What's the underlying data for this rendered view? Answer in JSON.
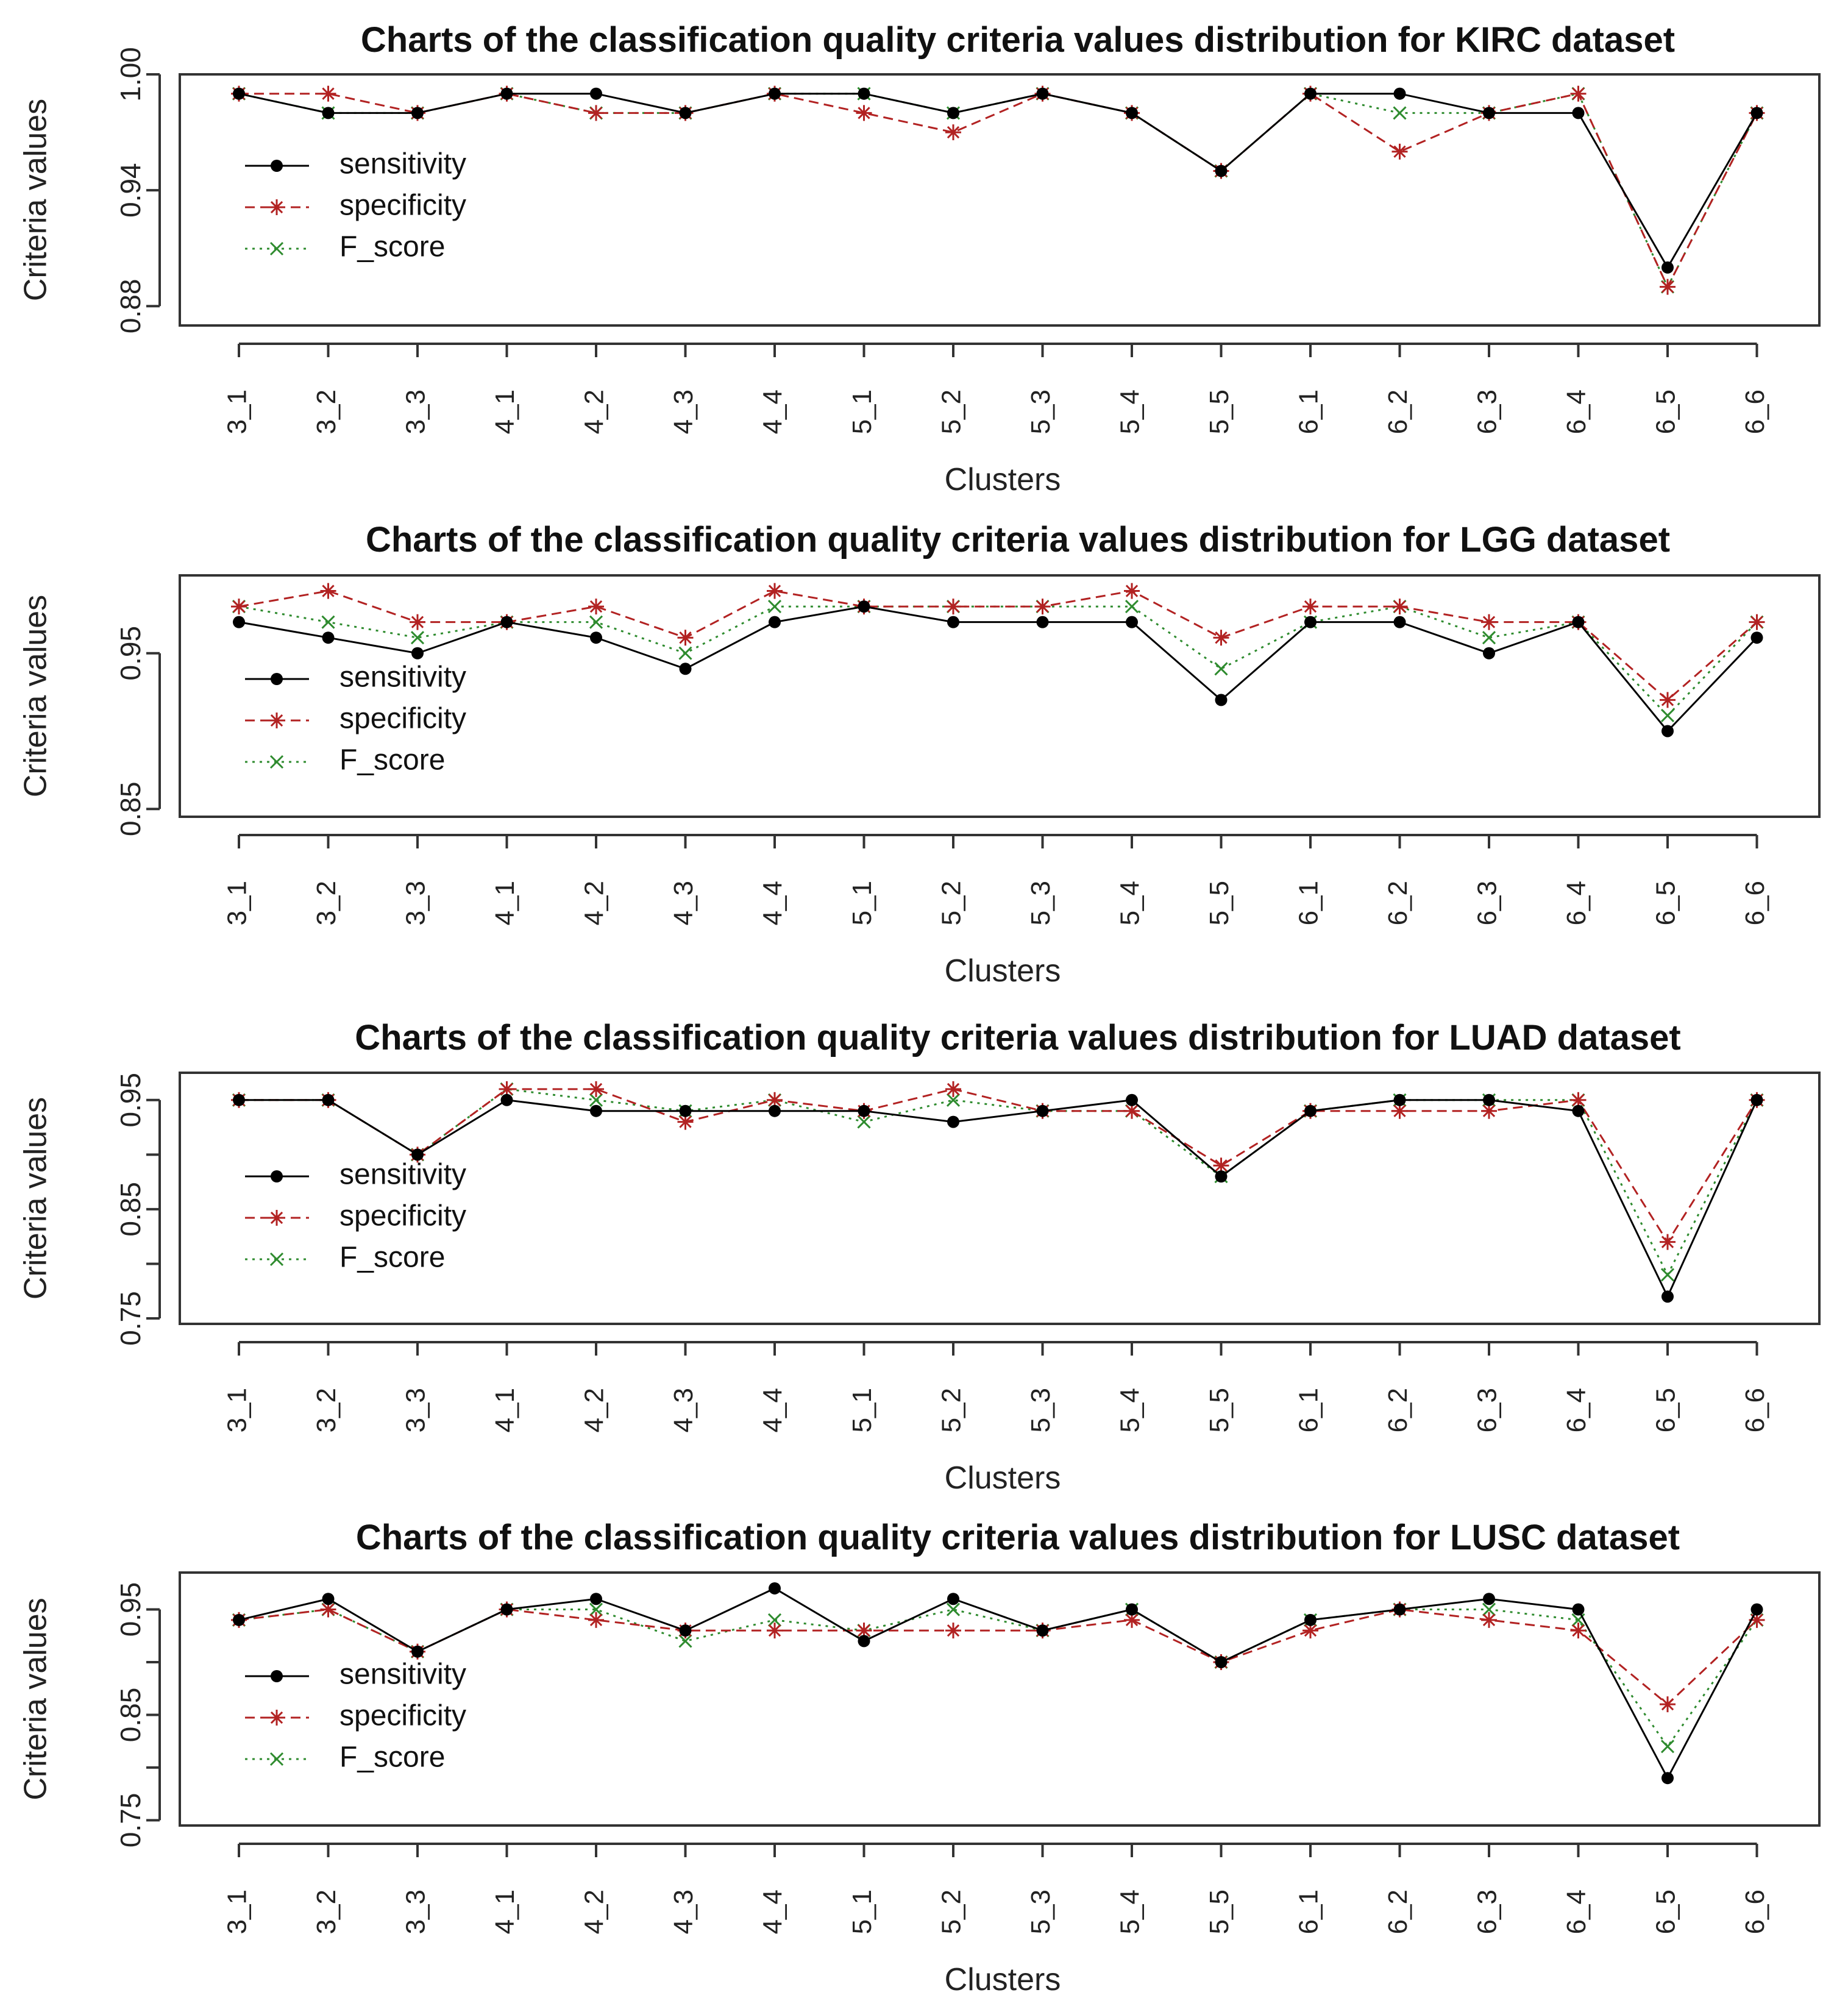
{
  "clusters": [
    "3_1",
    "3_2",
    "3_3",
    "4_1",
    "4_2",
    "4_3",
    "4_4",
    "5_1",
    "5_2",
    "5_3",
    "5_4",
    "5_5",
    "6_1",
    "6_2",
    "6_3",
    "6_4",
    "6_5",
    "6_6"
  ],
  "legend": [
    "sensitivity",
    "specificity",
    "F_score"
  ],
  "colors": {
    "sensitivity": "#000000",
    "specificity": "#b22222",
    "F_score": "#2e8b2e",
    "axis": "#333333"
  },
  "chart_data": [
    {
      "type": "line",
      "title": "Charts of the classification quality criteria values distribution for KIRC dataset",
      "xlabel": "Clusters",
      "ylabel": "Criteria values",
      "ylim": [
        0.87,
        1.0
      ],
      "yticks": [
        0.88,
        0.94,
        1.0
      ],
      "ytick_labels": [
        "0.88",
        "0.94",
        "1.00"
      ],
      "legend_position": "top-left",
      "categories": [
        "3_1",
        "3_2",
        "3_3",
        "4_1",
        "4_2",
        "4_3",
        "4_4",
        "5_1",
        "5_2",
        "5_3",
        "5_4",
        "5_5",
        "6_1",
        "6_2",
        "6_3",
        "6_4",
        "6_5",
        "6_6"
      ],
      "series": [
        {
          "name": "sensitivity",
          "values": [
            0.99,
            0.98,
            0.98,
            0.99,
            0.99,
            0.98,
            0.99,
            0.99,
            0.98,
            0.99,
            0.98,
            0.95,
            0.99,
            0.99,
            0.98,
            0.98,
            0.9,
            0.98
          ]
        },
        {
          "name": "specificity",
          "values": [
            0.99,
            0.99,
            0.98,
            0.99,
            0.98,
            0.98,
            0.99,
            0.98,
            0.97,
            0.99,
            0.98,
            0.95,
            0.99,
            0.96,
            0.98,
            0.99,
            0.89,
            0.98
          ]
        },
        {
          "name": "F_score",
          "values": [
            0.99,
            0.98,
            0.98,
            0.99,
            0.98,
            0.98,
            0.99,
            0.99,
            0.98,
            0.99,
            0.98,
            0.95,
            0.99,
            0.98,
            0.98,
            0.99,
            0.89,
            0.98
          ]
        }
      ]
    },
    {
      "type": "line",
      "title": "Charts of the classification quality criteria values distribution for LGG dataset",
      "xlabel": "Clusters",
      "ylabel": "Criteria values",
      "ylim": [
        0.845,
        1.0
      ],
      "yticks": [
        0.85,
        0.95
      ],
      "ytick_labels": [
        "0.85",
        "0.95"
      ],
      "legend_position": "left",
      "categories": [
        "3_1",
        "3_2",
        "3_3",
        "4_1",
        "4_2",
        "4_3",
        "4_4",
        "5_1",
        "5_2",
        "5_3",
        "5_4",
        "5_5",
        "6_1",
        "6_2",
        "6_3",
        "6_4",
        "6_5",
        "6_6"
      ],
      "series": [
        {
          "name": "sensitivity",
          "values": [
            0.97,
            0.96,
            0.95,
            0.97,
            0.96,
            0.94,
            0.97,
            0.98,
            0.97,
            0.97,
            0.97,
            0.92,
            0.97,
            0.97,
            0.95,
            0.97,
            0.9,
            0.96
          ]
        },
        {
          "name": "specificity",
          "values": [
            0.98,
            0.99,
            0.97,
            0.97,
            0.98,
            0.96,
            0.99,
            0.98,
            0.98,
            0.98,
            0.99,
            0.96,
            0.98,
            0.98,
            0.97,
            0.97,
            0.92,
            0.97
          ]
        },
        {
          "name": "F_score",
          "values": [
            0.98,
            0.97,
            0.96,
            0.97,
            0.97,
            0.95,
            0.98,
            0.98,
            0.98,
            0.98,
            0.98,
            0.94,
            0.97,
            0.98,
            0.96,
            0.97,
            0.91,
            0.97
          ]
        }
      ]
    },
    {
      "type": "line",
      "title": "Charts of the classification quality criteria values distribution for LUAD dataset",
      "xlabel": "Clusters",
      "ylabel": "Criteria values",
      "ylim": [
        0.745,
        0.975
      ],
      "yticks": [
        0.75,
        0.8,
        0.85,
        0.9,
        0.95
      ],
      "ytick_labels": [
        "0.75",
        "",
        "0.85",
        "",
        "0.95"
      ],
      "legend_position": "left",
      "categories": [
        "3_1",
        "3_2",
        "3_3",
        "4_1",
        "4_2",
        "4_3",
        "4_4",
        "5_1",
        "5_2",
        "5_3",
        "5_4",
        "5_5",
        "6_1",
        "6_2",
        "6_3",
        "6_4",
        "6_5",
        "6_6"
      ],
      "series": [
        {
          "name": "sensitivity",
          "values": [
            0.95,
            0.95,
            0.9,
            0.95,
            0.94,
            0.94,
            0.94,
            0.94,
            0.93,
            0.94,
            0.95,
            0.88,
            0.94,
            0.95,
            0.95,
            0.94,
            0.77,
            0.95
          ]
        },
        {
          "name": "specificity",
          "values": [
            0.95,
            0.95,
            0.9,
            0.96,
            0.96,
            0.93,
            0.95,
            0.94,
            0.96,
            0.94,
            0.94,
            0.89,
            0.94,
            0.94,
            0.94,
            0.95,
            0.82,
            0.95
          ]
        },
        {
          "name": "F_score",
          "values": [
            0.95,
            0.95,
            0.9,
            0.96,
            0.95,
            0.94,
            0.95,
            0.93,
            0.95,
            0.94,
            0.94,
            0.88,
            0.94,
            0.95,
            0.95,
            0.95,
            0.79,
            0.95
          ]
        }
      ]
    },
    {
      "type": "line",
      "title": "Charts of the classification quality criteria values distribution for LUSC dataset",
      "xlabel": "Clusters",
      "ylabel": "Criteria values",
      "ylim": [
        0.745,
        0.985
      ],
      "yticks": [
        0.75,
        0.8,
        0.85,
        0.9,
        0.95
      ],
      "ytick_labels": [
        "0.75",
        "",
        "0.85",
        "",
        "0.95"
      ],
      "legend_position": "left",
      "categories": [
        "3_1",
        "3_2",
        "3_3",
        "4_1",
        "4_2",
        "4_3",
        "4_4",
        "5_1",
        "5_2",
        "5_3",
        "5_4",
        "5_5",
        "6_1",
        "6_2",
        "6_3",
        "6_4",
        "6_5",
        "6_6"
      ],
      "series": [
        {
          "name": "sensitivity",
          "values": [
            0.94,
            0.96,
            0.91,
            0.95,
            0.96,
            0.93,
            0.97,
            0.92,
            0.96,
            0.93,
            0.95,
            0.9,
            0.94,
            0.95,
            0.96,
            0.95,
            0.79,
            0.95
          ]
        },
        {
          "name": "specificity",
          "values": [
            0.94,
            0.95,
            0.91,
            0.95,
            0.94,
            0.93,
            0.93,
            0.93,
            0.93,
            0.93,
            0.94,
            0.9,
            0.93,
            0.95,
            0.94,
            0.93,
            0.86,
            0.94
          ]
        },
        {
          "name": "F_score",
          "values": [
            0.94,
            0.95,
            0.91,
            0.95,
            0.95,
            0.92,
            0.94,
            0.93,
            0.95,
            0.93,
            0.95,
            0.9,
            0.94,
            0.95,
            0.95,
            0.94,
            0.82,
            0.94
          ]
        }
      ]
    }
  ]
}
